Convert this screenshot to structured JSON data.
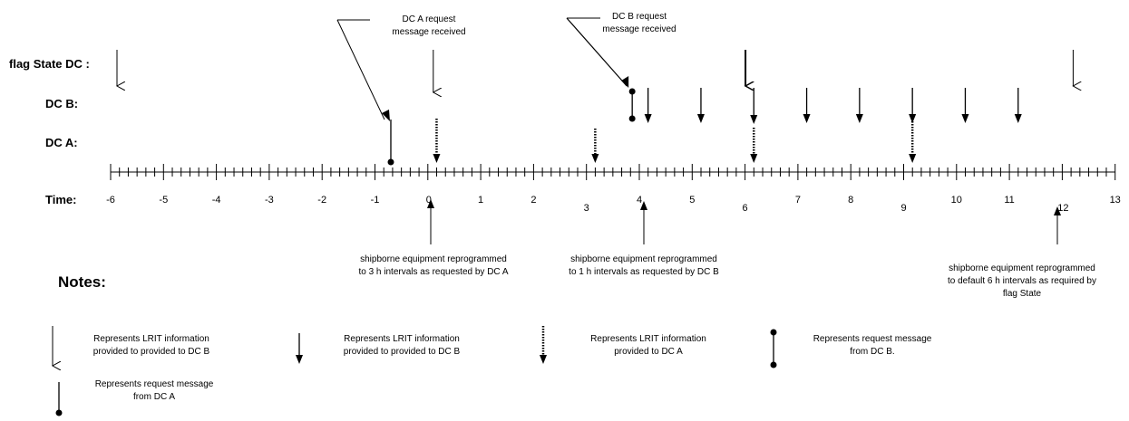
{
  "rows": {
    "flag_state": "flag State DC :",
    "dc_b": "DC B:",
    "dc_a": "DC A:",
    "time": "Time:"
  },
  "ticks": [
    "-6",
    "-5",
    "-4",
    "-3",
    "-2",
    "-1",
    "0",
    "1",
    "2",
    "3",
    "4",
    "5",
    "6",
    "7",
    "8",
    "9",
    "10",
    "11",
    "12",
    "13"
  ],
  "callouts": {
    "dc_a_request": "DC A request\nmessage received",
    "dc_b_request": "DC B request\nmessage received",
    "reprogram_dc_a": "shipborne equipment reprogrammed\nto 3 h intervals as requested by DC A",
    "reprogram_dc_b": "shipborne equipment reprogrammed\nto 1 h intervals as requested by DC B",
    "reprogram_flag": "shipborne equipment reprogrammed\nto default 6 h intervals as required by\nflag State"
  },
  "notes": {
    "heading": "Notes:",
    "legend_open_arrow": "Represents LRIT information\nprovided to provided to DC B",
    "legend_solid_arrow": "Represents LRIT information\nprovided to provided to DC B",
    "legend_dotted_arrow": "Represents LRIT information\nprovided to DC A",
    "legend_dumbbell": "Represents request message\nfrom DC B.",
    "legend_lollipop": "Represents request message\nfrom DC A"
  },
  "events": {
    "flag_state_reports": [
      -6,
      6,
      12
    ],
    "flag_dc_a_request_arrow_at": 0,
    "dc_b_reports": [
      4.2,
      5.2,
      6.2,
      7.2,
      8.2,
      9.2,
      10.2,
      11.2
    ],
    "dc_a_reports": [
      0.2,
      3.2,
      6.2,
      9.2
    ],
    "dc_a_request_message": -0.7,
    "dc_b_request_message": 3.9,
    "reprogram_points": [
      0.2,
      4.2,
      12.2
    ]
  }
}
